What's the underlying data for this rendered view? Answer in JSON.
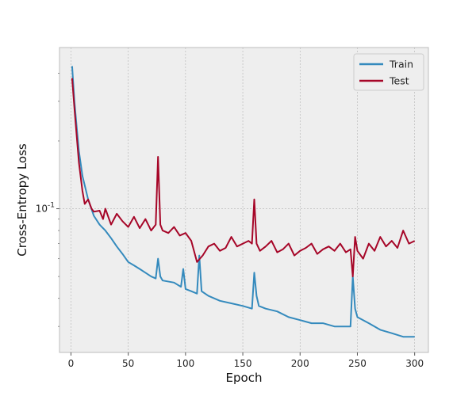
{
  "chart_data": {
    "type": "line",
    "title": "",
    "xlabel": "Epoch",
    "ylabel": "Cross-Entropy Loss",
    "yscale": "log",
    "xlim": [
      -10,
      312
    ],
    "ylim": [
      0.023,
      0.52
    ],
    "grid": true,
    "legend_position": "top-right",
    "x_ticks": [
      0,
      50,
      100,
      150,
      200,
      250,
      300
    ],
    "x_tick_labels": [
      "0",
      "50",
      "100",
      "150",
      "200",
      "250",
      "300"
    ],
    "y_major_ticks": [
      {
        "value": 0.1,
        "label": "10",
        "exponent": "-1"
      }
    ],
    "y_minor_ticks": [
      0.03,
      0.04,
      0.05,
      0.06,
      0.07,
      0.08,
      0.09,
      0.2,
      0.3,
      0.4
    ],
    "colors": {
      "Train": "#348ABD",
      "Test": "#A60628",
      "background": "#EEEEEE",
      "grid": "#B2B2B2",
      "spine": "#BCBCBC"
    },
    "series": [
      {
        "name": "Train",
        "x": [
          1,
          3,
          5,
          7,
          10,
          15,
          20,
          25,
          30,
          35,
          40,
          45,
          50,
          55,
          60,
          65,
          70,
          74,
          76,
          78,
          80,
          90,
          96,
          98,
          100,
          105,
          110,
          112,
          114,
          120,
          130,
          140,
          150,
          158,
          160,
          162,
          164,
          170,
          180,
          190,
          200,
          210,
          220,
          230,
          240,
          244,
          246,
          248,
          250,
          260,
          270,
          280,
          290,
          300
        ],
        "y": [
          0.43,
          0.3,
          0.23,
          0.18,
          0.14,
          0.11,
          0.093,
          0.085,
          0.08,
          0.074,
          0.068,
          0.063,
          0.058,
          0.056,
          0.054,
          0.052,
          0.05,
          0.049,
          0.06,
          0.05,
          0.048,
          0.047,
          0.045,
          0.054,
          0.044,
          0.043,
          0.042,
          0.062,
          0.043,
          0.041,
          0.039,
          0.038,
          0.037,
          0.036,
          0.052,
          0.041,
          0.037,
          0.036,
          0.035,
          0.033,
          0.032,
          0.031,
          0.031,
          0.03,
          0.03,
          0.03,
          0.05,
          0.036,
          0.033,
          0.031,
          0.029,
          0.028,
          0.027,
          0.027
        ]
      },
      {
        "name": "Test",
        "x": [
          1,
          3,
          5,
          7,
          10,
          12,
          15,
          18,
          20,
          25,
          28,
          30,
          35,
          40,
          45,
          50,
          55,
          60,
          65,
          70,
          74,
          76,
          78,
          80,
          85,
          90,
          95,
          100,
          105,
          110,
          115,
          120,
          125,
          130,
          135,
          140,
          145,
          150,
          155,
          158,
          160,
          162,
          165,
          170,
          175,
          180,
          185,
          190,
          195,
          200,
          205,
          210,
          215,
          220,
          225,
          230,
          235,
          240,
          244,
          246,
          248,
          250,
          255,
          260,
          265,
          270,
          275,
          280,
          285,
          290,
          295,
          300
        ],
        "y": [
          0.38,
          0.28,
          0.21,
          0.16,
          0.12,
          0.105,
          0.11,
          0.1,
          0.097,
          0.098,
          0.09,
          0.1,
          0.085,
          0.095,
          0.088,
          0.083,
          0.092,
          0.082,
          0.09,
          0.08,
          0.085,
          0.17,
          0.085,
          0.08,
          0.078,
          0.083,
          0.076,
          0.078,
          0.072,
          0.058,
          0.062,
          0.068,
          0.07,
          0.065,
          0.067,
          0.075,
          0.068,
          0.07,
          0.072,
          0.07,
          0.11,
          0.07,
          0.065,
          0.068,
          0.072,
          0.064,
          0.066,
          0.07,
          0.062,
          0.065,
          0.067,
          0.07,
          0.063,
          0.066,
          0.068,
          0.065,
          0.07,
          0.064,
          0.066,
          0.05,
          0.075,
          0.065,
          0.06,
          0.07,
          0.065,
          0.075,
          0.068,
          0.072,
          0.067,
          0.08,
          0.07,
          0.072
        ]
      }
    ]
  }
}
